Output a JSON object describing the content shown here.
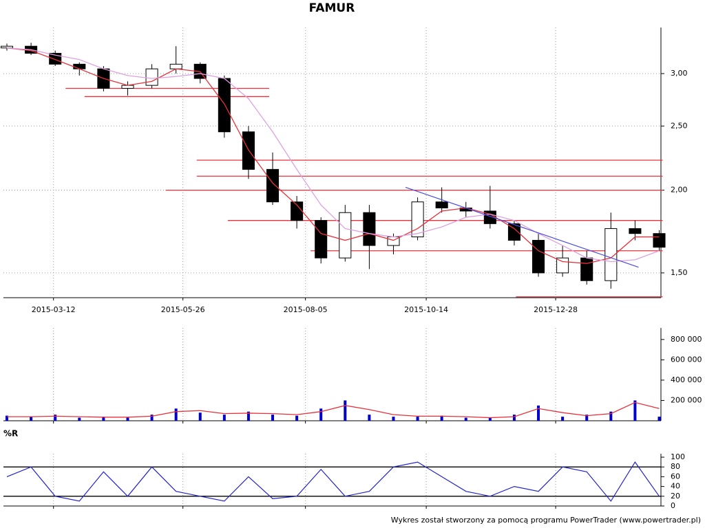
{
  "chart_data": [
    {
      "type": "candlestick",
      "title": "FAMUR",
      "log_scale": true,
      "grid": true,
      "up_color": "#ffffff",
      "down_color": "#000000",
      "x": [
        "2015-02-13",
        "2015-02-27",
        "2015-03-13",
        "2015-03-27",
        "2015-04-10",
        "2015-04-24",
        "2015-05-08",
        "2015-05-22",
        "2015-06-05",
        "2015-06-19",
        "2015-07-03",
        "2015-07-17",
        "2015-07-31",
        "2015-08-14",
        "2015-08-28",
        "2015-09-11",
        "2015-09-25",
        "2015-10-09",
        "2015-10-23",
        "2015-11-06",
        "2015-11-20",
        "2015-12-04",
        "2015-12-18",
        "2016-01-01",
        "2016-01-15",
        "2016-01-29",
        "2016-02-12",
        "2016-02-26"
      ],
      "open": [
        3.28,
        3.3,
        3.22,
        3.1,
        3.05,
        2.85,
        2.88,
        3.05,
        3.1,
        2.95,
        2.45,
        2.15,
        1.92,
        1.8,
        1.58,
        1.85,
        1.65,
        1.7,
        1.92,
        1.88,
        1.86,
        1.78,
        1.68,
        1.5,
        1.58,
        1.46,
        1.75,
        1.72
      ],
      "high": [
        3.33,
        3.34,
        3.25,
        3.12,
        3.08,
        2.92,
        3.1,
        3.3,
        3.12,
        2.98,
        2.5,
        2.28,
        1.96,
        1.82,
        1.9,
        1.9,
        1.72,
        1.95,
        2.02,
        1.92,
        2.03,
        1.8,
        1.72,
        1.65,
        1.62,
        1.85,
        1.8,
        1.74
      ],
      "low": [
        3.25,
        3.2,
        3.08,
        2.98,
        2.82,
        2.78,
        2.85,
        3.0,
        2.9,
        2.4,
        2.08,
        1.9,
        1.75,
        1.55,
        1.56,
        1.52,
        1.6,
        1.68,
        1.85,
        1.82,
        1.75,
        1.65,
        1.48,
        1.48,
        1.44,
        1.42,
        1.68,
        1.62
      ],
      "close": [
        3.3,
        3.22,
        3.1,
        3.05,
        2.85,
        2.88,
        3.05,
        3.1,
        2.95,
        2.45,
        2.15,
        1.92,
        1.8,
        1.58,
        1.85,
        1.65,
        1.7,
        1.92,
        1.88,
        1.86,
        1.78,
        1.68,
        1.5,
        1.58,
        1.46,
        1.75,
        1.72,
        1.64
      ],
      "series": [
        {
          "color": "#e8303a",
          "values": [
            3.28,
            3.25,
            3.15,
            3.05,
            2.95,
            2.88,
            2.92,
            3.05,
            3.02,
            2.7,
            2.3,
            2.05,
            1.9,
            1.72,
            1.68,
            1.72,
            1.68,
            1.75,
            1.86,
            1.88,
            1.84,
            1.75,
            1.62,
            1.56,
            1.55,
            1.58,
            1.7,
            1.7
          ]
        },
        {
          "color": "#e0a0e0",
          "values": [
            3.28,
            3.26,
            3.2,
            3.15,
            3.05,
            2.98,
            2.95,
            2.97,
            3.0,
            2.95,
            2.75,
            2.45,
            2.15,
            1.9,
            1.75,
            1.72,
            1.7,
            1.72,
            1.76,
            1.82,
            1.84,
            1.8,
            1.72,
            1.65,
            1.58,
            1.56,
            1.57,
            1.62
          ]
        }
      ],
      "levels": [
        {
          "value": 2.85,
          "from": "2015-03-19",
          "to": "2015-07-15"
        },
        {
          "value": 2.77,
          "from": "2015-03-30",
          "to": "2015-07-15"
        },
        {
          "value": 2.22,
          "from": "2015-06-03",
          "to": "2016-02-28"
        },
        {
          "value": 2.1,
          "from": "2015-06-03",
          "to": "2016-02-28"
        },
        {
          "value": 2.0,
          "from": "2015-05-16",
          "to": "2016-02-28"
        },
        {
          "value": 1.8,
          "from": "2015-06-21",
          "to": "2016-02-28"
        },
        {
          "value": 1.62,
          "from": "2015-08-08",
          "to": "2016-02-28"
        },
        {
          "value": 1.38,
          "from": "2015-12-05",
          "to": "2016-02-28"
        }
      ],
      "level_color": "#e8303a",
      "trend_line": {
        "color": "#4a4ae0",
        "x": [
          "2015-10-02",
          "2016-02-14"
        ],
        "values": [
          2.02,
          1.53
        ]
      },
      "xlim": [
        "2015-02-11",
        "2016-02-27"
      ],
      "xticks": [
        "2015-03-12",
        "2015-05-26",
        "2015-08-05",
        "2015-10-14",
        "2015-12-28"
      ],
      "ylim": [
        1.376,
        3.48
      ],
      "yticks": [
        {
          "value": 1.5,
          "label": "1,50"
        },
        {
          "value": 2,
          "label": "2,00"
        },
        {
          "value": 2.5,
          "label": "2,50"
        },
        {
          "value": 3,
          "label": "3,00"
        }
      ]
    },
    {
      "type": "bar",
      "color": "#0000cc",
      "grid": true,
      "x": [
        "2015-02-13",
        "2015-02-27",
        "2015-03-13",
        "2015-03-27",
        "2015-04-10",
        "2015-04-24",
        "2015-05-08",
        "2015-05-22",
        "2015-06-05",
        "2015-06-19",
        "2015-07-03",
        "2015-07-17",
        "2015-07-31",
        "2015-08-14",
        "2015-08-28",
        "2015-09-11",
        "2015-09-25",
        "2015-10-09",
        "2015-10-23",
        "2015-11-06",
        "2015-11-20",
        "2015-12-04",
        "2015-12-18",
        "2016-01-01",
        "2016-01-15",
        "2016-01-29",
        "2016-02-12",
        "2016-02-26"
      ],
      "values": [
        50000,
        40000,
        60000,
        30000,
        40000,
        30000,
        60000,
        120000,
        80000,
        60000,
        90000,
        60000,
        50000,
        120000,
        200000,
        60000,
        40000,
        40000,
        50000,
        30000,
        30000,
        60000,
        150000,
        40000,
        60000,
        90000,
        200000,
        40000
      ],
      "series": [
        {
          "color": "#e8303a",
          "values": [
            40000,
            40000,
            45000,
            40000,
            35000,
            35000,
            45000,
            90000,
            100000,
            70000,
            75000,
            70000,
            60000,
            90000,
            150000,
            110000,
            60000,
            45000,
            45000,
            40000,
            30000,
            40000,
            120000,
            80000,
            50000,
            70000,
            180000,
            120000
          ]
        }
      ],
      "xlim": [
        "2015-02-11",
        "2016-02-27"
      ],
      "xticks": [
        "2015-03-12",
        "2015-05-26",
        "2015-08-05",
        "2015-10-14",
        "2015-12-28"
      ],
      "ylim": [
        0,
        880000
      ],
      "yticks": [
        {
          "value": 200000,
          "label": "200 000"
        },
        {
          "value": 400000,
          "label": "400 000"
        },
        {
          "value": 600000,
          "label": "600 000"
        },
        {
          "value": 800000,
          "label": "800 000"
        }
      ]
    },
    {
      "type": "line",
      "title": "%R",
      "color": "#2222cc",
      "grid": true,
      "x": [
        "2015-02-13",
        "2015-02-27",
        "2015-03-13",
        "2015-03-27",
        "2015-04-10",
        "2015-04-24",
        "2015-05-08",
        "2015-05-22",
        "2015-06-05",
        "2015-06-19",
        "2015-07-03",
        "2015-07-17",
        "2015-07-31",
        "2015-08-14",
        "2015-08-28",
        "2015-09-11",
        "2015-09-25",
        "2015-10-09",
        "2015-10-23",
        "2015-11-06",
        "2015-11-20",
        "2015-12-04",
        "2015-12-18",
        "2016-01-01",
        "2016-01-15",
        "2016-01-29",
        "2016-02-12",
        "2016-02-26"
      ],
      "values": [
        60,
        80,
        20,
        10,
        70,
        20,
        80,
        30,
        20,
        10,
        60,
        15,
        20,
        75,
        20,
        30,
        80,
        90,
        60,
        30,
        20,
        40,
        30,
        80,
        70,
        10,
        90,
        20
      ],
      "levels": [
        {
          "value": 20
        },
        {
          "value": 80
        }
      ],
      "level_color": "#000000",
      "xlim": [
        "2015-02-11",
        "2016-02-27"
      ],
      "xticks": [
        "2015-03-12",
        "2015-05-26",
        "2015-08-05",
        "2015-10-14",
        "2015-12-28"
      ],
      "ylim": [
        0,
        100
      ],
      "yticks": [
        0,
        20,
        40,
        60,
        80,
        100
      ]
    }
  ],
  "footer": "Wykres został stworzony za pomocą programu PowerTrader (www.powertrader.pl)"
}
